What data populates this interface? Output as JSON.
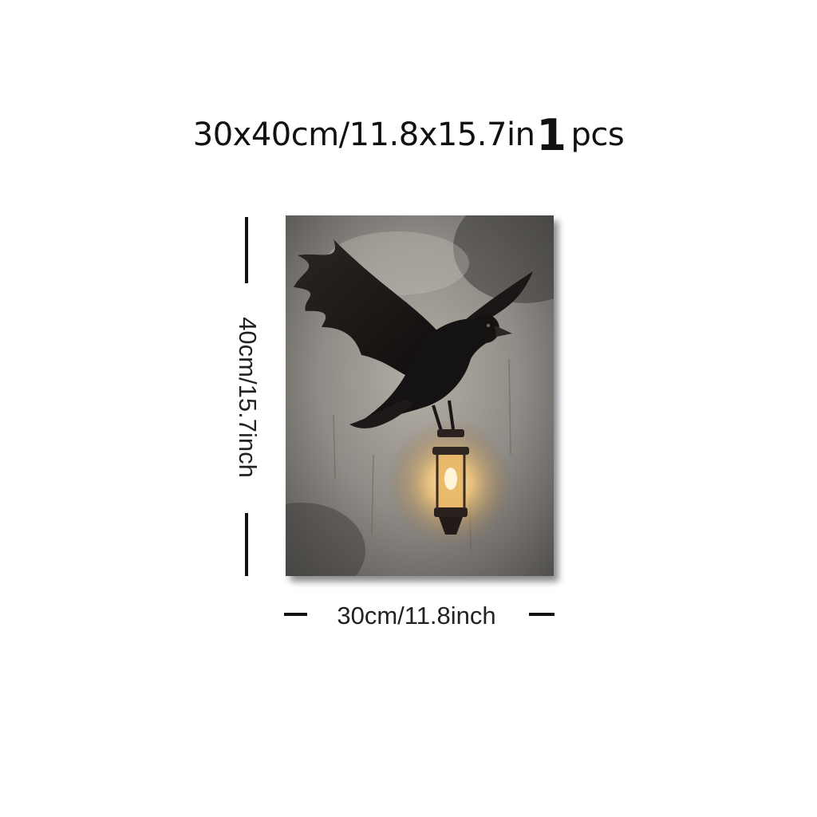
{
  "title": {
    "size": "30x40cm/11.8x15.7in",
    "quantity": "1",
    "unit": "pcs"
  },
  "dimensions": {
    "height_label": "40cm/15.7inch",
    "width_label": "30cm/11.8inch"
  },
  "artwork": {
    "subject": "raven-with-lantern",
    "colors": {
      "background": "#8f8c87",
      "bird": "#141212",
      "lantern_glow": "#f3c77a"
    }
  }
}
